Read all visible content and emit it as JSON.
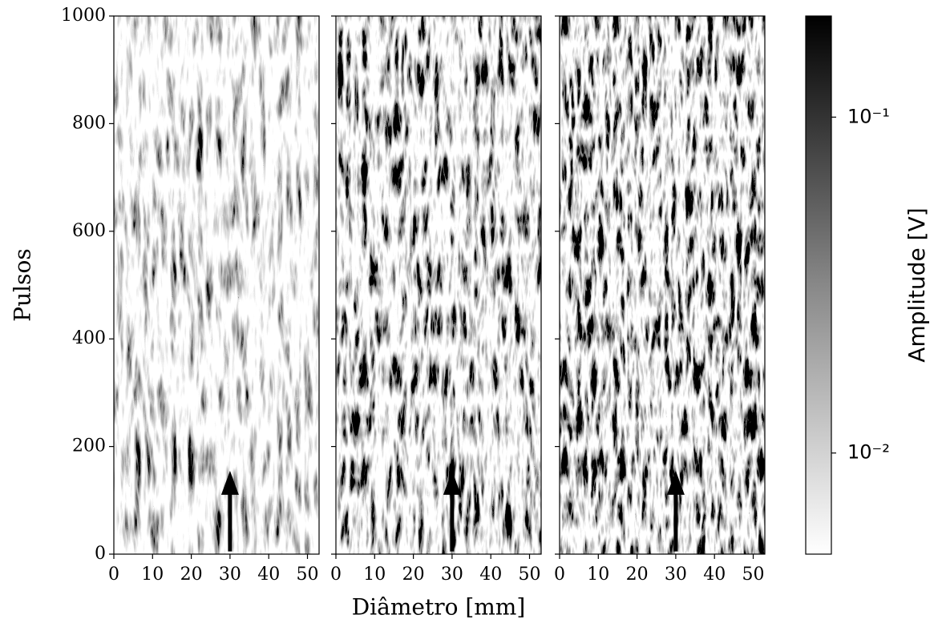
{
  "chart_data": [
    {
      "type": "heatmap",
      "ylabel": "Pulsos",
      "xlim": [
        0,
        53
      ],
      "ylim": [
        0,
        1000
      ],
      "xticks": [
        0,
        10,
        20,
        30,
        40,
        50
      ],
      "yticks": [
        0,
        200,
        400,
        600,
        800,
        1000
      ],
      "arrow": {
        "x": 30,
        "y_start": 5,
        "y_end": 155
      }
    },
    {
      "type": "heatmap",
      "xlabel": "Diâmetro [mm]",
      "xlim": [
        0,
        53
      ],
      "ylim": [
        0,
        1000
      ],
      "xticks": [
        0,
        10,
        20,
        30,
        40,
        50
      ],
      "yticks": [
        0,
        200,
        400,
        600,
        800,
        1000
      ],
      "arrow": {
        "x": 30,
        "y_start": 5,
        "y_end": 155
      }
    },
    {
      "type": "heatmap",
      "xlim": [
        0,
        53
      ],
      "ylim": [
        0,
        1000
      ],
      "xticks": [
        0,
        10,
        20,
        30,
        40,
        50
      ],
      "yticks": [
        0,
        200,
        400,
        600,
        800,
        1000
      ],
      "arrow": {
        "x": 30,
        "y_start": 5,
        "y_end": 155
      }
    },
    {
      "type": "colorbar",
      "label": "Amplitude [V]",
      "log_scale": true,
      "ylim": [
        0.005,
        0.2
      ],
      "yticks": [
        {
          "value": 0.01,
          "label": "10⁻²"
        },
        {
          "value": 0.1,
          "label": "10⁻¹"
        }
      ]
    }
  ]
}
